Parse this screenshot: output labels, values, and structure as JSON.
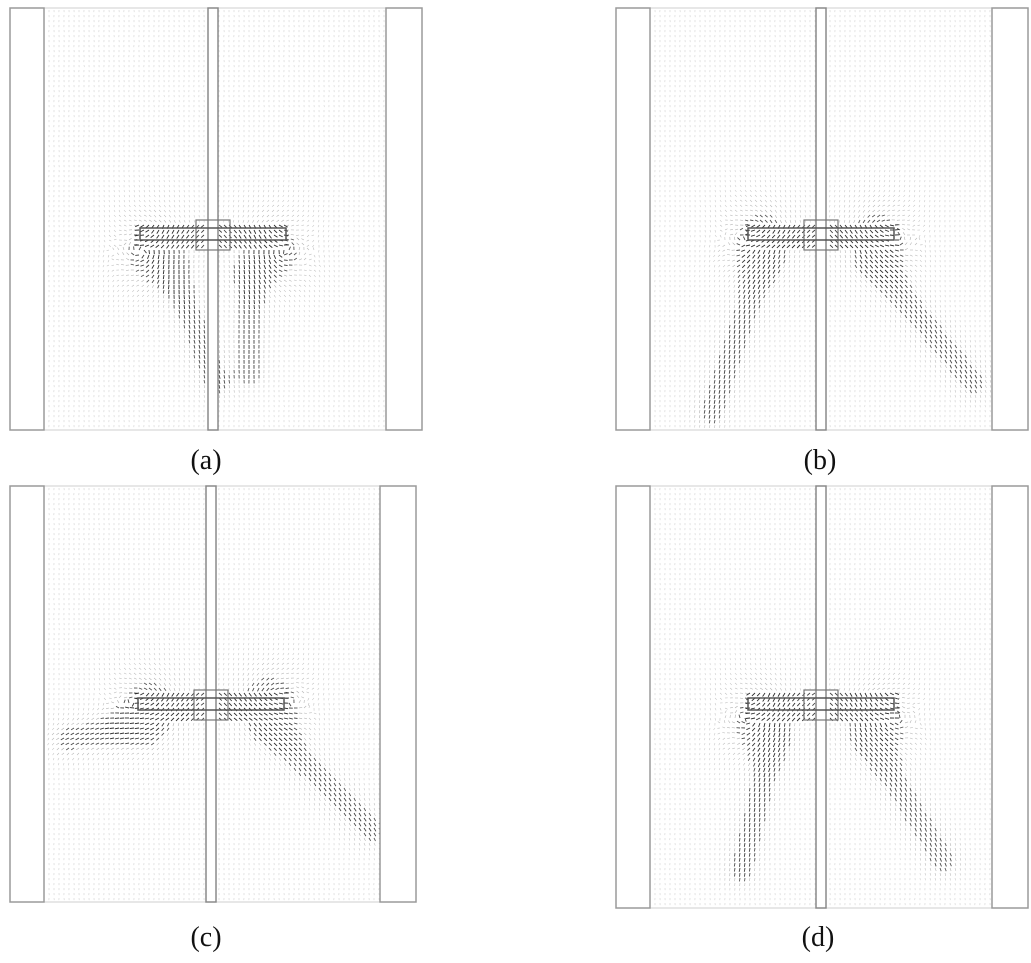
{
  "figure": {
    "panels": [
      {
        "caption": "(a)",
        "flow_pattern": "double-loop"
      },
      {
        "caption": "(b)",
        "flow_pattern": "single-loop-diagonal"
      },
      {
        "caption": "(c)",
        "flow_pattern": "asymmetric-diagonal"
      },
      {
        "caption": "(d)",
        "flow_pattern": "double-loop-diagonal"
      }
    ],
    "colors": {
      "vector": "#8a8a8a",
      "vector_dense": "#2a2a2a",
      "outline": "#9a9a9a",
      "background": "#ffffff"
    }
  }
}
